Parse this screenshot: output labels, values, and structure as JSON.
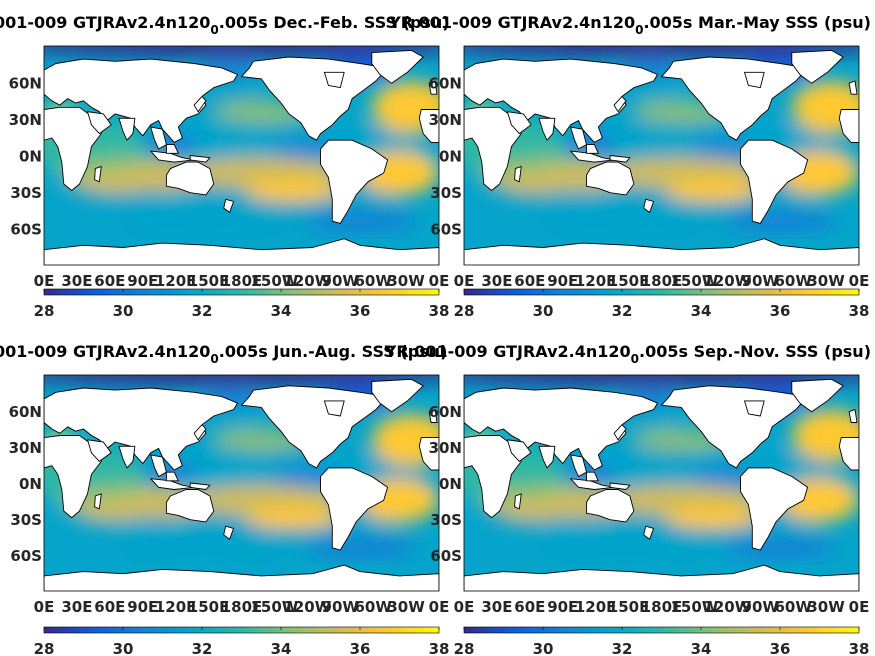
{
  "chart_data": [
    {
      "type": "heatmap",
      "title": "001-009 GTJRAv2.4n120",
      "title_subscript": "0",
      "title_suffix": ".005s Dec.-Feb. SSS (psu)",
      "variable": "SSS",
      "unit": "psu",
      "season": "Dec.-Feb.",
      "x_ticks": [
        "0E",
        "30E",
        "60E",
        "90E",
        "120E",
        "150E",
        "180E",
        "150W",
        "120W",
        "90W",
        "60W",
        "30W",
        "0E"
      ],
      "y_ticks": [
        "60N",
        "30N",
        "0N",
        "30S",
        "60S"
      ],
      "colorbar": {
        "ticks": [
          "28",
          "30",
          "32",
          "34",
          "36",
          "38"
        ],
        "min": 28,
        "max": 38,
        "colormap": "parula"
      }
    },
    {
      "type": "heatmap",
      "title": "YR 001-009 GTJRAv2.4n120",
      "title_subscript": "0",
      "title_suffix": ".005s Mar.-May SSS (psu)",
      "variable": "SSS",
      "unit": "psu",
      "season": "Mar.-May",
      "x_ticks": [
        "0E",
        "30E",
        "60E",
        "90E",
        "120E",
        "150E",
        "180E",
        "150W",
        "120W",
        "90W",
        "60W",
        "30W",
        "0E"
      ],
      "y_ticks": [
        "60N",
        "30N",
        "0N",
        "30S",
        "60S"
      ],
      "colorbar": {
        "ticks": [
          "28",
          "30",
          "32",
          "34",
          "36",
          "38"
        ],
        "min": 28,
        "max": 38,
        "colormap": "parula"
      }
    },
    {
      "type": "heatmap",
      "title": "001-009 GTJRAv2.4n120",
      "title_subscript": "0",
      "title_suffix": ".005s Jun.-Aug. SSS (psu)",
      "variable": "SSS",
      "unit": "psu",
      "season": "Jun.-Aug.",
      "x_ticks": [
        "0E",
        "30E",
        "60E",
        "90E",
        "120E",
        "150E",
        "180E",
        "150W",
        "120W",
        "90W",
        "60W",
        "30W",
        "0E"
      ],
      "y_ticks": [
        "60N",
        "30N",
        "0N",
        "30S",
        "60S"
      ],
      "colorbar": {
        "ticks": [
          "28",
          "30",
          "32",
          "34",
          "36",
          "38"
        ],
        "min": 28,
        "max": 38,
        "colormap": "parula"
      }
    },
    {
      "type": "heatmap",
      "title": "YR 001-009 GTJRAv2.4n120",
      "title_subscript": "0",
      "title_suffix": ".005s Sep.-Nov. SSS (psu)",
      "variable": "SSS",
      "unit": "psu",
      "season": "Sep.-Nov.",
      "x_ticks": [
        "0E",
        "30E",
        "60E",
        "90E",
        "120E",
        "150E",
        "180E",
        "150W",
        "120W",
        "90W",
        "60W",
        "30W",
        "0E"
      ],
      "y_ticks": [
        "60N",
        "30N",
        "0N",
        "30S",
        "60S"
      ],
      "colorbar": {
        "ticks": [
          "28",
          "30",
          "32",
          "34",
          "36",
          "38"
        ],
        "min": 28,
        "max": 38,
        "colormap": "parula"
      }
    }
  ],
  "colors": {
    "parula": [
      "#352a87",
      "#0f5cdd",
      "#1481d6",
      "#06a4ca",
      "#2eb7a4",
      "#87bf77",
      "#d1bb59",
      "#fec832",
      "#f9fb0e"
    ],
    "land": "#ffffff",
    "coastline": "#000000",
    "axis": "#000000"
  }
}
